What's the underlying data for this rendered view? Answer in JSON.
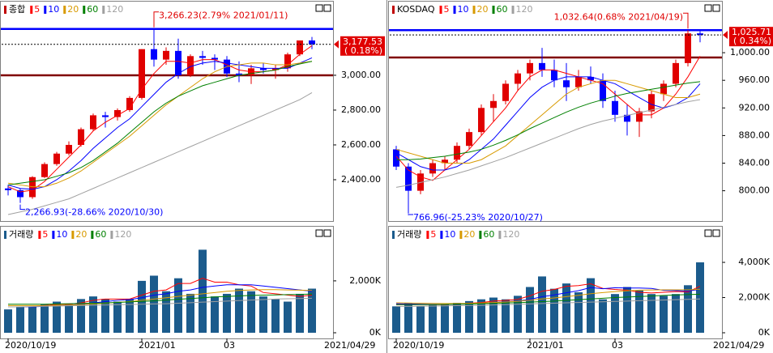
{
  "chart_data": [
    {
      "type": "candlestick",
      "title": "종합",
      "open": [
        2350,
        2340,
        2300,
        2415,
        2490,
        2550,
        2600,
        2690,
        2770,
        2760,
        2800,
        2870,
        3150,
        3090,
        3140,
        3000,
        3110,
        3100,
        3090,
        3010,
        3000,
        3040,
        3030,
        3040,
        3120,
        3200
      ],
      "high": [
        2370,
        2350,
        2420,
        2500,
        2560,
        2620,
        2700,
        2780,
        2790,
        2810,
        2880,
        3150,
        3266.23,
        3160,
        3210,
        3120,
        3140,
        3120,
        3110,
        3080,
        3060,
        3070,
        3060,
        3130,
        3200,
        3220
      ],
      "low": [
        2310,
        2266.93,
        2290,
        2410,
        2480,
        2540,
        2590,
        2680,
        2700,
        2740,
        2790,
        2860,
        3050,
        3060,
        2980,
        2990,
        3060,
        3030,
        2990,
        2960,
        2950,
        3010,
        2980,
        3020,
        3110,
        3150
      ],
      "close": [
        2340,
        2300,
        2415,
        2490,
        2550,
        2600,
        2690,
        2770,
        2760,
        2800,
        2870,
        3150,
        3090,
        3140,
        3000,
        3110,
        3100,
        3090,
        3010,
        3000,
        3040,
        3030,
        3040,
        3120,
        3200,
        3177.53
      ],
      "up_color": "#e00000",
      "down_color": "#0000ff",
      "series": [
        {
          "name": "5",
          "color": "#ff0000",
          "values": [
            2360,
            2330,
            2340,
            2390,
            2460,
            2530,
            2600,
            2680,
            2730,
            2770,
            2810,
            2920,
            3010,
            3080,
            3080,
            3070,
            3090,
            3090,
            3060,
            3030,
            3020,
            3020,
            3030,
            3060,
            3120,
            3170
          ]
        },
        {
          "name": "10",
          "color": "#0000ff",
          "values": [
            2370,
            2350,
            2345,
            2360,
            2400,
            2450,
            2510,
            2580,
            2640,
            2700,
            2750,
            2820,
            2890,
            2960,
            3010,
            3050,
            3070,
            3080,
            3070,
            3060,
            3050,
            3040,
            3040,
            3040,
            3070,
            3100
          ]
        },
        {
          "name": "20",
          "color": "#d89a00",
          "values": [
            2380,
            2370,
            2360,
            2360,
            2380,
            2410,
            2450,
            2500,
            2550,
            2600,
            2650,
            2710,
            2770,
            2830,
            2880,
            2930,
            2980,
            3020,
            3050,
            3060,
            3070,
            3070,
            3060,
            3060,
            3070,
            3080
          ]
        },
        {
          "name": "60",
          "color": "#008000",
          "values": [
            2370,
            2380,
            2390,
            2400,
            2420,
            2440,
            2470,
            2510,
            2560,
            2610,
            2670,
            2730,
            2790,
            2840,
            2880,
            2910,
            2940,
            2960,
            2980,
            3000,
            3010,
            3020,
            3030,
            3050,
            3065,
            3080
          ]
        },
        {
          "name": "120",
          "color": "#a0a0a0",
          "values": [
            2200,
            2215,
            2230,
            2250,
            2270,
            2290,
            2320,
            2350,
            2380,
            2410,
            2440,
            2470,
            2500,
            2530,
            2560,
            2590,
            2620,
            2650,
            2680,
            2710,
            2740,
            2770,
            2800,
            2830,
            2860,
            2900
          ]
        }
      ],
      "ylim": [
        2186,
        3423
      ],
      "yticks": [
        {
          "value": 3000,
          "label": "3,000.00"
        },
        {
          "value": 2800,
          "label": "2,800.00"
        },
        {
          "value": 2600,
          "label": "2,600.00"
        },
        {
          "value": 2400,
          "label": "2,400.00"
        }
      ],
      "hlines": [
        {
          "value": 3266.23,
          "color": "#0000ff"
        },
        {
          "value": 3000,
          "color": "#800000"
        }
      ],
      "high_label": "3,266.23(2.79% 2021/01/11)",
      "low_label": "2,266.93(-28.66% 2020/10/30)",
      "last_price_label": "3,177.53",
      "last_change_label": "( 0.18%)"
    },
    {
      "type": "bar",
      "title": "거래량",
      "categories": [
        "2020/10/19",
        null,
        null,
        null,
        null,
        null,
        null,
        null,
        null,
        null,
        null,
        "2021/01",
        null,
        null,
        null,
        null,
        null,
        null,
        "03",
        null,
        null,
        null,
        null,
        null,
        null,
        null
      ],
      "values": [
        900,
        1000,
        1000,
        1100,
        1200,
        1100,
        1300,
        1400,
        1300,
        1200,
        1300,
        2000,
        2200,
        1600,
        2100,
        1500,
        3200,
        1400,
        1500,
        1700,
        1600,
        1400,
        1300,
        1200,
        1500,
        1700
      ],
      "color": "#1b5b8c",
      "series": [
        {
          "name": "5",
          "color": "#ff0000",
          "values": [
            1000,
            1000,
            1000,
            1050,
            1100,
            1100,
            1150,
            1250,
            1300,
            1300,
            1300,
            1450,
            1600,
            1650,
            1900,
            1900,
            2100,
            1950,
            1950,
            1850,
            1800,
            1550,
            1500,
            1450,
            1400,
            1450
          ]
        },
        {
          "name": "10",
          "color": "#0000ff",
          "values": [
            1000,
            1000,
            1000,
            1020,
            1050,
            1070,
            1100,
            1150,
            1200,
            1250,
            1280,
            1350,
            1450,
            1500,
            1600,
            1650,
            1750,
            1800,
            1850,
            1850,
            1850,
            1800,
            1750,
            1700,
            1650,
            1600
          ]
        },
        {
          "name": "20",
          "color": "#d89a00",
          "values": [
            1050,
            1050,
            1050,
            1050,
            1060,
            1070,
            1090,
            1110,
            1140,
            1170,
            1200,
            1250,
            1300,
            1350,
            1400,
            1450,
            1500,
            1550,
            1600,
            1630,
            1650,
            1660,
            1660,
            1650,
            1640,
            1630
          ]
        },
        {
          "name": "60",
          "color": "#008000",
          "values": [
            1100,
            1100,
            1100,
            1100,
            1110,
            1120,
            1130,
            1140,
            1150,
            1170,
            1190,
            1210,
            1230,
            1260,
            1290,
            1320,
            1350,
            1380,
            1400,
            1420,
            1440,
            1450,
            1460,
            1470,
            1480,
            1490
          ]
        },
        {
          "name": "120",
          "color": "#a0a0a0",
          "values": [
            1000,
            1000,
            1010,
            1020,
            1030,
            1040,
            1050,
            1060,
            1070,
            1080,
            1090,
            1100,
            1110,
            1120,
            1140,
            1160,
            1180,
            1200,
            1220,
            1240,
            1260,
            1280,
            1300,
            1310,
            1320,
            1330
          ]
        }
      ],
      "ylim": [
        0,
        3900
      ],
      "yticks": [
        {
          "value": 2000,
          "label": "2,000K"
        },
        {
          "value": 0,
          "label": "0K"
        }
      ],
      "x_end_label": "2021/04/29"
    },
    {
      "type": "candlestick",
      "title": "KOSDAQ",
      "open": [
        860,
        835,
        800,
        825,
        840,
        845,
        865,
        885,
        920,
        930,
        955,
        970,
        985,
        975,
        960,
        950,
        965,
        960,
        930,
        910,
        900,
        915,
        940,
        955,
        985,
        1028
      ],
      "high": [
        865,
        840,
        830,
        845,
        850,
        870,
        890,
        925,
        940,
        960,
        975,
        990,
        1007,
        990,
        985,
        975,
        980,
        970,
        945,
        925,
        920,
        945,
        960,
        990,
        1032.64,
        1031
      ],
      "low": [
        830,
        766.96,
        795,
        820,
        830,
        840,
        860,
        880,
        900,
        925,
        945,
        960,
        965,
        950,
        930,
        945,
        955,
        920,
        900,
        880,
        878,
        905,
        930,
        950,
        980,
        1015
      ],
      "close": [
        835,
        800,
        825,
        840,
        845,
        865,
        885,
        920,
        930,
        955,
        970,
        985,
        975,
        960,
        950,
        965,
        960,
        930,
        910,
        900,
        915,
        940,
        955,
        985,
        1028,
        1025.71
      ],
      "up_color": "#e00000",
      "down_color": "#0000ff",
      "series": [
        {
          "name": "5",
          "color": "#ff0000",
          "values": [
            850,
            830,
            820,
            815,
            830,
            845,
            860,
            880,
            900,
            920,
            945,
            965,
            975,
            975,
            970,
            965,
            960,
            955,
            940,
            925,
            910,
            910,
            920,
            940,
            965,
            995
          ]
        },
        {
          "name": "10",
          "color": "#0000ff",
          "values": [
            855,
            845,
            835,
            830,
            830,
            835,
            845,
            860,
            875,
            895,
            915,
            935,
            950,
            960,
            965,
            965,
            965,
            960,
            955,
            945,
            935,
            925,
            920,
            925,
            935,
            955
          ]
        },
        {
          "name": "20",
          "color": "#d89a00",
          "values": [
            860,
            855,
            850,
            845,
            840,
            840,
            840,
            845,
            855,
            865,
            880,
            895,
            910,
            925,
            940,
            950,
            955,
            960,
            960,
            955,
            950,
            945,
            940,
            935,
            935,
            940
          ]
        },
        {
          "name": "60",
          "color": "#008000",
          "values": [
            845,
            845,
            846,
            848,
            850,
            853,
            856,
            860,
            866,
            873,
            881,
            890,
            898,
            906,
            914,
            921,
            927,
            932,
            937,
            941,
            944,
            947,
            950,
            953,
            956,
            958
          ]
        },
        {
          "name": "120",
          "color": "#a0a0a0",
          "values": [
            805,
            808,
            812,
            816,
            820,
            825,
            830,
            836,
            842,
            848,
            855,
            862,
            869,
            876,
            883,
            890,
            896,
            901,
            905,
            909,
            913,
            917,
            921,
            925,
            929,
            932
          ]
        }
      ],
      "ylim": [
        762,
        1074
      ],
      "yticks": [
        {
          "value": 1000,
          "label": "1,000.00"
        },
        {
          "value": 960,
          "label": "960.00"
        },
        {
          "value": 920,
          "label": "920.00"
        },
        {
          "value": 880,
          "label": "880.00"
        },
        {
          "value": 840,
          "label": "840.00"
        },
        {
          "value": 800,
          "label": "800.00"
        }
      ],
      "hlines": [
        {
          "value": 1032.64,
          "color": "#0000ff"
        },
        {
          "value": 993,
          "color": "#800000"
        }
      ],
      "high_label": "1,032.64(0.68% 2021/04/19)",
      "low_label": "766.96(-25.23% 2020/10/27)",
      "last_price_label": "1,025.71",
      "last_change_label": "( 0.34%)"
    },
    {
      "type": "bar",
      "title": "거래량",
      "categories": [
        "2020/10/19",
        null,
        null,
        null,
        null,
        null,
        null,
        null,
        null,
        null,
        null,
        "2021/01",
        null,
        null,
        null,
        null,
        null,
        null,
        "03",
        null,
        null,
        null,
        null,
        null,
        null,
        null
      ],
      "values": [
        1500,
        1700,
        1500,
        1600,
        1600,
        1700,
        1800,
        1900,
        2000,
        1900,
        2100,
        2600,
        3200,
        2500,
        2800,
        2300,
        3100,
        1900,
        2200,
        2600,
        2400,
        2200,
        2100,
        2200,
        2700,
        4000
      ],
      "color": "#1b5b8c",
      "series": [
        {
          "name": "5",
          "color": "#ff0000",
          "values": [
            1600,
            1600,
            1600,
            1600,
            1600,
            1620,
            1680,
            1720,
            1800,
            1840,
            1900,
            2100,
            2360,
            2460,
            2640,
            2680,
            2780,
            2520,
            2460,
            2420,
            2300,
            2260,
            2300,
            2340,
            2320,
            2640
          ]
        },
        {
          "name": "10",
          "color": "#0000ff",
          "values": [
            1650,
            1640,
            1620,
            1610,
            1610,
            1620,
            1650,
            1680,
            1720,
            1760,
            1800,
            1900,
            2050,
            2150,
            2270,
            2390,
            2570,
            2500,
            2560,
            2540,
            2540,
            2520,
            2410,
            2400,
            2370,
            2470
          ]
        },
        {
          "name": "20",
          "color": "#d89a00",
          "values": [
            1700,
            1690,
            1680,
            1670,
            1660,
            1660,
            1670,
            1690,
            1720,
            1750,
            1790,
            1850,
            1920,
            1980,
            2050,
            2130,
            2220,
            2280,
            2340,
            2380,
            2420,
            2430,
            2440,
            2440,
            2440,
            2470
          ]
        },
        {
          "name": "60",
          "color": "#008000",
          "values": [
            1600,
            1600,
            1600,
            1600,
            1610,
            1620,
            1630,
            1650,
            1670,
            1690,
            1710,
            1740,
            1770,
            1800,
            1840,
            1880,
            1920,
            1960,
            2000,
            2030,
            2060,
            2090,
            2120,
            2150,
            2170,
            2190
          ]
        },
        {
          "name": "120",
          "color": "#a0a0a0",
          "values": [
            1500,
            1500,
            1510,
            1520,
            1530,
            1540,
            1550,
            1560,
            1580,
            1600,
            1620,
            1640,
            1660,
            1680,
            1700,
            1720,
            1740,
            1760,
            1780,
            1800,
            1820,
            1840,
            1860,
            1880,
            1900,
            1920
          ]
        }
      ],
      "ylim": [
        0,
        5750
      ],
      "yticks": [
        {
          "value": 4000,
          "label": "4,000K"
        },
        {
          "value": 2000,
          "label": "2,000K"
        },
        {
          "value": 0,
          "label": "0K"
        }
      ],
      "x_end_label": "2021/04/29"
    }
  ]
}
